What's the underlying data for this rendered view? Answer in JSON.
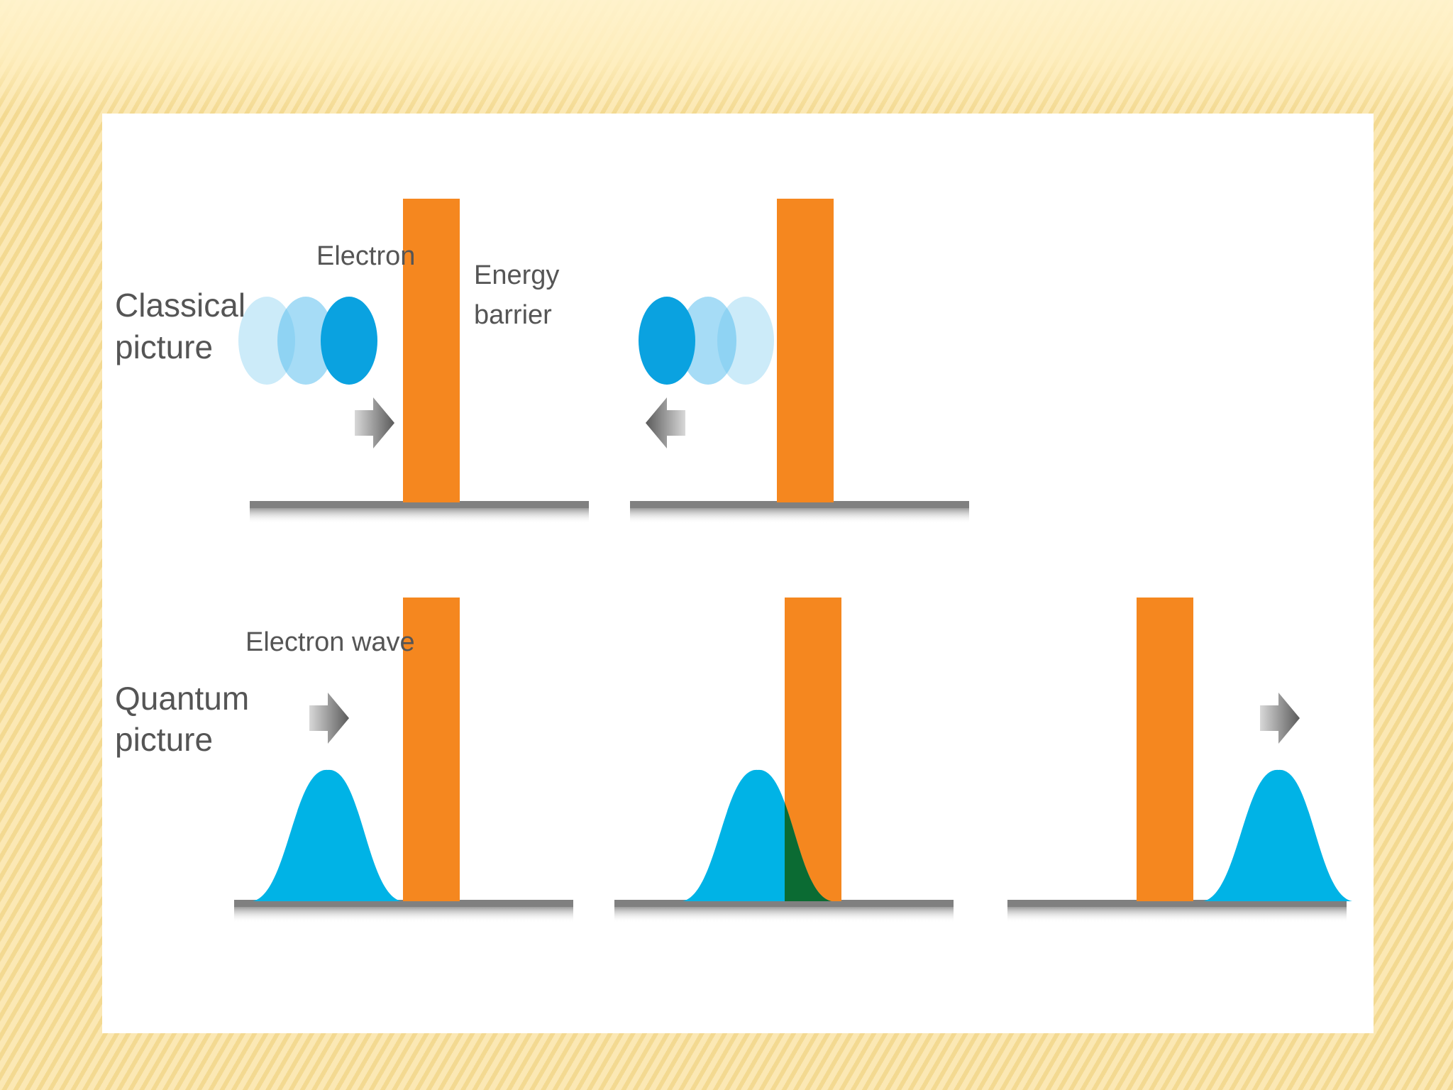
{
  "diagram": {
    "rows": [
      {
        "label_line1": "Classical",
        "label_line2": "picture"
      },
      {
        "label_line1": "Quantum",
        "label_line2": "picture"
      }
    ],
    "annotations": {
      "electron": "Electron",
      "energy_barrier_line1": "Energy",
      "energy_barrier_line2": "barrier",
      "electron_wave": "Electron wave"
    },
    "colors": {
      "barrier": "#f5871f",
      "electron_solid": "#0aa2e0",
      "electron_ghost": "#8fd2f2",
      "wave": "#00b3e6",
      "tunnel_region": "#0b6b33",
      "ground": "#808080",
      "arrow": "#6b6b6b",
      "text": "#555555"
    }
  }
}
